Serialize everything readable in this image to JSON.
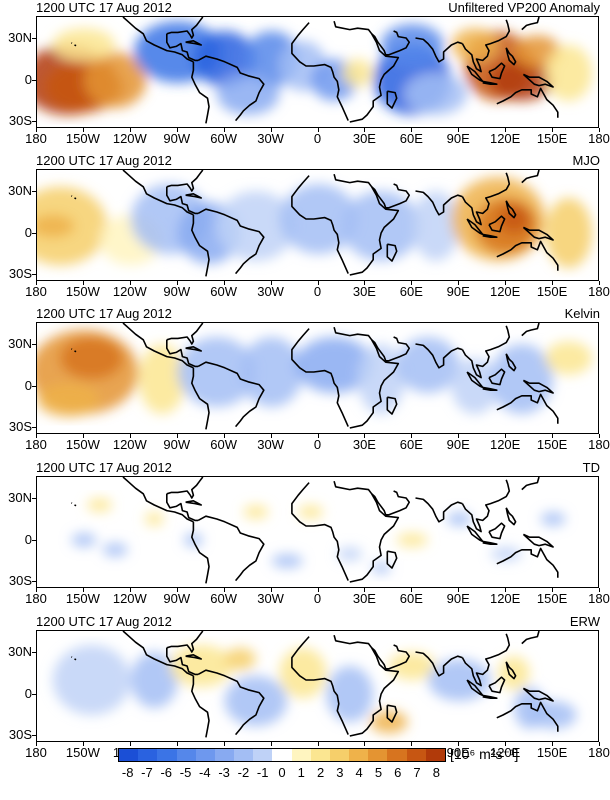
{
  "panels": [
    {
      "date": "1200 UTC 17 Aug 2012",
      "label": "Unfiltered VP200 Anomaly"
    },
    {
      "date": "1200 UTC 17 Aug 2012",
      "label": "MJO"
    },
    {
      "date": "1200 UTC 17 Aug 2012",
      "label": "Kelvin"
    },
    {
      "date": "1200 UTC 17 Aug 2012",
      "label": "TD"
    },
    {
      "date": "1200 UTC 17 Aug 2012",
      "label": "ERW"
    }
  ],
  "lat_labels": [
    "30N",
    "0",
    "30S"
  ],
  "lon_labels": [
    "180",
    "150W",
    "120W",
    "90W",
    "60W",
    "30W",
    "0",
    "30E",
    "60E",
    "90E",
    "120E",
    "150E",
    "180"
  ],
  "colorbar": {
    "levels": [
      "-8",
      "-7",
      "-6",
      "-5",
      "-4",
      "-3",
      "-2",
      "-1",
      "0",
      "1",
      "2",
      "3",
      "4",
      "5",
      "6",
      "7",
      "8"
    ],
    "colors": [
      "#1b4fd6",
      "#2a62e0",
      "#3b74e6",
      "#5587ea",
      "#6e98ee",
      "#88aaf1",
      "#a3bef4",
      "#bfd2f7",
      "#ffffff",
      "#fff5c0",
      "#fbe691",
      "#f6cf6a",
      "#efb24a",
      "#e49432",
      "#d7741f",
      "#c75612",
      "#b13a0a"
    ],
    "units": "[10⁶ m²s⁻¹]"
  }
}
